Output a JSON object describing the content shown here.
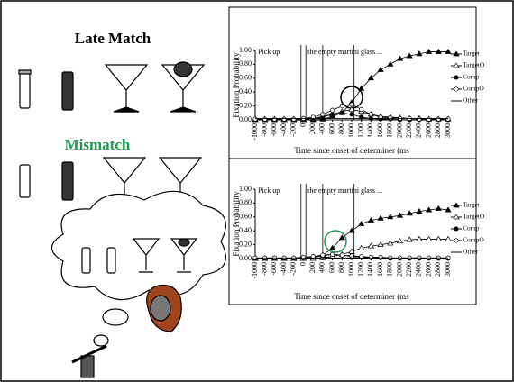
{
  "labels": {
    "late_match": "Late Match",
    "mismatch": "Mismatch"
  },
  "chart_data": [
    {
      "type": "line",
      "annotations": [
        "Pick up",
        "the empty martini glass ..."
      ],
      "ylabel": "Fixation Probability",
      "xlabel": "Time since onset of determiner (ms",
      "x": [
        -1000,
        -800,
        -600,
        -400,
        -200,
        0,
        200,
        400,
        600,
        800,
        1000,
        1200,
        1400,
        1600,
        1800,
        2000,
        2200,
        2400,
        2600,
        2800,
        3000
      ],
      "xlim": [
        -1000,
        3000
      ],
      "xticks": [
        -1000,
        -800,
        -600,
        -400,
        -200,
        0,
        200,
        400,
        600,
        800,
        1000,
        1200,
        1400,
        1600,
        1800,
        2000,
        2200,
        2400,
        2600,
        2800,
        3000
      ],
      "ylim": [
        0,
        1
      ],
      "yticks": [
        {
          "value": 0,
          "label": "0.00"
        },
        {
          "value": 0.2,
          "label": "0.20"
        },
        {
          "value": 0.4,
          "label": "0.40"
        },
        {
          "value": 0.6,
          "label": "0.60"
        },
        {
          "value": 0.8,
          "label": "0.80"
        },
        {
          "value": 1,
          "label": "1.00"
        }
      ],
      "event_lines": [
        -50,
        50,
        400,
        1050
      ],
      "series": [
        {
          "name": "Target",
          "color": "#000000",
          "marker": "triangle-filled",
          "values": [
            0,
            0,
            0,
            0,
            0,
            0,
            0,
            0.01,
            0.05,
            0.1,
            0.25,
            0.45,
            0.6,
            0.72,
            0.8,
            0.88,
            0.92,
            0.95,
            0.98,
            0.98,
            0.98
          ]
        },
        {
          "name": "TargetO",
          "color": "#000000",
          "marker": "triangle-open",
          "values": [
            0.01,
            0.01,
            0.01,
            0.01,
            0.01,
            0.01,
            0.02,
            0.04,
            0.08,
            0.12,
            0.15,
            0.12,
            0.08,
            0.05,
            0.04,
            0.03,
            0.02,
            0.02,
            0.01,
            0.01,
            0.01
          ]
        },
        {
          "name": "Comp",
          "color": "#000000",
          "marker": "circle-filled",
          "values": [
            0,
            0,
            0,
            0,
            0,
            0.01,
            0.02,
            0.05,
            0.08,
            0.1,
            0.08,
            0.04,
            0.02,
            0.01,
            0.01,
            0,
            0,
            0,
            0,
            0,
            0
          ]
        },
        {
          "name": "CompO",
          "color": "#000000",
          "marker": "circle-open",
          "values": [
            0.01,
            0.01,
            0.01,
            0.01,
            0.01,
            0.02,
            0.04,
            0.08,
            0.14,
            0.2,
            0.22,
            0.15,
            0.08,
            0.04,
            0.03,
            0.02,
            0.02,
            0.01,
            0.01,
            0.01,
            0.01
          ]
        },
        {
          "name": "Other",
          "color": "#000000",
          "marker": "none",
          "values": [
            0.02,
            0.02,
            0.02,
            0.02,
            0.02,
            0.02,
            0.02,
            0.02,
            0.02,
            0.02,
            0.02,
            0.02,
            0.02,
            0.02,
            0.02,
            0.02,
            0.02,
            0.02,
            0.02,
            0.02,
            0.02
          ]
        }
      ]
    },
    {
      "type": "line",
      "annotations": [
        "Pick up",
        "the empty martini glass ..."
      ],
      "ylabel": "Fixation Probability",
      "xlabel": "Time since onset of determiner (ms",
      "x": [
        -1000,
        -800,
        -600,
        -400,
        -200,
        0,
        200,
        400,
        600,
        800,
        1000,
        1200,
        1400,
        1600,
        1800,
        2000,
        2200,
        2400,
        2600,
        2800,
        3000
      ],
      "xlim": [
        -1000,
        3000
      ],
      "xticks": [
        -1000,
        -800,
        -600,
        -400,
        -200,
        0,
        200,
        400,
        600,
        800,
        1000,
        1200,
        1400,
        1600,
        1800,
        2000,
        2200,
        2400,
        2600,
        2800,
        3000
      ],
      "ylim": [
        0,
        1
      ],
      "yticks": [
        {
          "value": 0,
          "label": "0.00"
        },
        {
          "value": 0.2,
          "label": "0.20"
        },
        {
          "value": 0.4,
          "label": "0.40"
        },
        {
          "value": 0.6,
          "label": "0.60"
        },
        {
          "value": 0.8,
          "label": "0.80"
        },
        {
          "value": 1,
          "label": "1.00"
        }
      ],
      "event_lines": [
        -50,
        50,
        400,
        1050
      ],
      "series": [
        {
          "name": "Target",
          "color": "#000000",
          "marker": "triangle-filled",
          "values": [
            0,
            0,
            0,
            0,
            0,
            0,
            0.02,
            0.05,
            0.15,
            0.3,
            0.4,
            0.5,
            0.55,
            0.58,
            0.6,
            0.62,
            0.65,
            0.68,
            0.7,
            0.72,
            0.7
          ]
        },
        {
          "name": "TargetO",
          "color": "#000000",
          "marker": "triangle-open",
          "values": [
            0,
            0,
            0,
            0,
            0,
            0,
            0,
            0.01,
            0.03,
            0.06,
            0.1,
            0.15,
            0.18,
            0.2,
            0.22,
            0.25,
            0.27,
            0.28,
            0.28,
            0.28,
            0.28
          ]
        },
        {
          "name": "Comp",
          "color": "#000000",
          "marker": "circle-filled",
          "values": [
            0,
            0,
            0,
            0,
            0,
            0.01,
            0.02,
            0.04,
            0.06,
            0.05,
            0.03,
            0.02,
            0.01,
            0.01,
            0,
            0,
            0,
            0,
            0,
            0,
            0
          ]
        },
        {
          "name": "CompO",
          "color": "#000000",
          "marker": "circle-open",
          "values": [
            0.01,
            0.01,
            0.01,
            0.01,
            0.01,
            0.02,
            0.03,
            0.05,
            0.06,
            0.05,
            0.04,
            0.03,
            0.02,
            0.02,
            0.01,
            0.01,
            0.01,
            0.01,
            0.01,
            0.01,
            0.01
          ]
        },
        {
          "name": "Other",
          "color": "#000000",
          "marker": "none",
          "values": [
            0.01,
            0.01,
            0.01,
            0.01,
            0.01,
            0.01,
            0.01,
            0.01,
            0.01,
            0.01,
            0.01,
            0.01,
            0.01,
            0.01,
            0.01,
            0.01,
            0.01,
            0.01,
            0.01,
            0.01,
            0.01
          ]
        }
      ]
    }
  ]
}
